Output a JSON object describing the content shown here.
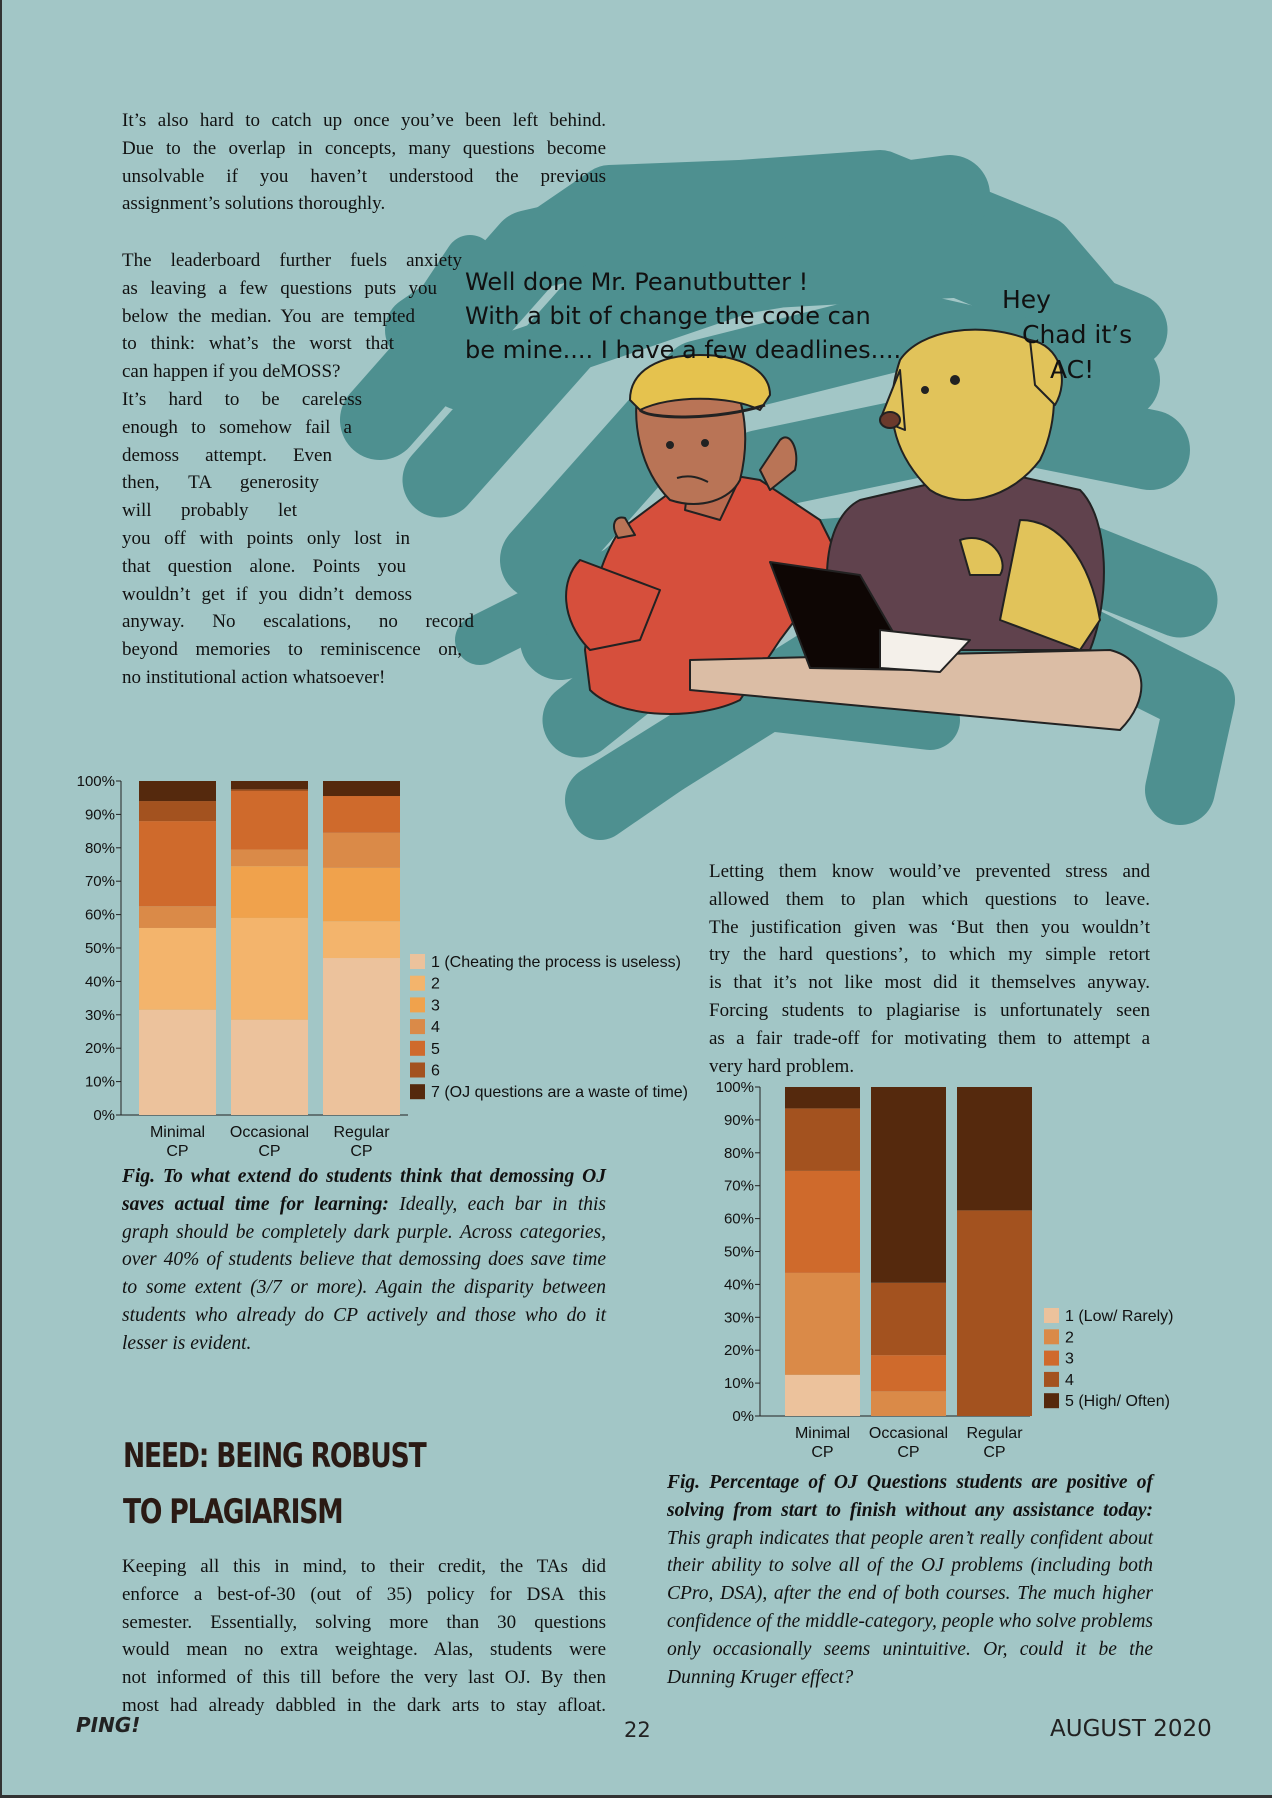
{
  "paragraphs": {
    "p1": [
      "It’s also hard to catch up once you’ve been left behind.",
      "Due to the overlap in concepts, many questions become",
      "unsolvable if you haven’t understood the previous",
      "assignment’s solutions thoroughly."
    ],
    "p2": [
      "The leaderboard further fuels anxiety",
      "as leaving a few questions puts you",
      "below the median. You are tempted",
      "to think: what’s the worst that",
      "can happen if you deMOSS?",
      "It’s hard to be careless",
      "enough to somehow fail a",
      "demoss attempt. Even",
      "then, TA generosity",
      "will probably let",
      "you off with points only lost in",
      "that question alone. Points you",
      "wouldn’t get if you didn’t demoss",
      "anyway. No escalations, no record",
      "beyond memories to reminiscence on,",
      "no institutional action whatsoever!"
    ],
    "p3": [
      "Letting them know would’ve prevented stress and",
      "allowed them to plan which questions to leave.",
      "The justification given was ‘But then you wouldn’t",
      "try the hard questions’, to which my simple retort",
      "is that it’s not like most did it themselves anyway.",
      "Forcing students to plagiarise is unfortunately seen",
      "as a fair trade-off for motivating them to attempt a",
      "very hard problem."
    ],
    "p4": [
      "Keeping all this in mind, to their credit, the TAs did",
      "enforce a best-of-30 (out of 35) policy for DSA this",
      "semester. Essentially, solving more than 30 questions",
      "would mean no extra weightage. Alas, students were",
      "not informed of this till before the very last OJ. By then",
      "most had already dabbled in the dark arts to stay afloat."
    ]
  },
  "heading": {
    "line1": "NEED: BEING ROBUST",
    "line2": "TO PLAGIARISM"
  },
  "comic": {
    "speech_left": [
      "Well done Mr. Peanutbutter !",
      "With a bit of change the code can",
      "be mine.... I have a few deadlines...."
    ],
    "speech_right": [
      "Hey",
      "Chad it’s",
      "AC!"
    ]
  },
  "captions": {
    "fig1_bold": "Fig. To what extend do students think that demossing OJ saves actual time for learning:",
    "fig1_text": " Ideally, each bar in this graph should be completely dark purple. Across categories, over 40% of students believe that demossing does save time to some extent (3/7 or more). Again the disparity between students who already do CP actively and those who do it lesser is evident.",
    "fig2_bold": "Fig. Percentage of OJ Questions students are positive of solving from start to finish without any assistance today:",
    "fig2_text": " This graph indicates that people aren’t really confident about their ability to solve all of the OJ problems (including both CPro, DSA), after the end of both courses. The much higher confidence of the middle-category, people who solve problems only occasionally seems unintuitive. Or, could it be the Dunning Kruger effect?"
  },
  "footer": {
    "left": "PING!",
    "page": "22",
    "date": "AUGUST 2020"
  },
  "chart_data": [
    {
      "type": "bar",
      "stacked": true,
      "categories": [
        [
          "Minimal",
          "CP"
        ],
        [
          "Occasional",
          "CP"
        ],
        [
          "Regular",
          "CP"
        ]
      ],
      "yticks": [
        "0%",
        "10%",
        "20%",
        "30%",
        "40%",
        "50%",
        "60%",
        "70%",
        "80%",
        "90%",
        "100%"
      ],
      "ylim": [
        0,
        100
      ],
      "series": [
        {
          "name": "1 (Cheating the process is useless)",
          "color": "#ecc29c",
          "values": [
            31.5,
            28.5,
            47
          ]
        },
        {
          "name": "2",
          "color": "#f3b46c",
          "values": [
            24.5,
            30.5,
            11
          ]
        },
        {
          "name": "3",
          "color": "#f0a24c",
          "values": [
            0,
            15.5,
            16
          ]
        },
        {
          "name": "4",
          "color": "#da8a48",
          "values": [
            6.5,
            5,
            10.5
          ]
        },
        {
          "name": "5",
          "color": "#cf6a2c",
          "values": [
            25.5,
            17.5,
            11
          ]
        },
        {
          "name": "6",
          "color": "#a3521f",
          "values": [
            6,
            0.5,
            0
          ]
        },
        {
          "name": "7 (OJ questions are a waste of time)",
          "color": "#55290d",
          "values": [
            6,
            2.5,
            4.5
          ]
        }
      ],
      "legend": "right"
    },
    {
      "type": "bar",
      "stacked": true,
      "categories": [
        [
          "Minimal",
          "CP"
        ],
        [
          "Occasional",
          "CP"
        ],
        [
          "Regular",
          "CP"
        ]
      ],
      "yticks": [
        "0%",
        "10%",
        "20%",
        "30%",
        "40%",
        "50%",
        "60%",
        "70%",
        "80%",
        "90%",
        "100%"
      ],
      "ylim": [
        0,
        100
      ],
      "series": [
        {
          "name": "1 (Low/ Rarely)",
          "color": "#ecc29c",
          "values": [
            12.5,
            0,
            0
          ]
        },
        {
          "name": "2",
          "color": "#da8a48",
          "values": [
            31,
            7.5,
            0
          ]
        },
        {
          "name": "3",
          "color": "#cf6a2c",
          "values": [
            31,
            11,
            0
          ]
        },
        {
          "name": "4",
          "color": "#a3521f",
          "values": [
            19,
            22,
            62.5
          ]
        },
        {
          "name": "5 (High/ Often)",
          "color": "#55290d",
          "values": [
            6.5,
            59.5,
            37.5
          ]
        }
      ],
      "legend": "right"
    }
  ]
}
